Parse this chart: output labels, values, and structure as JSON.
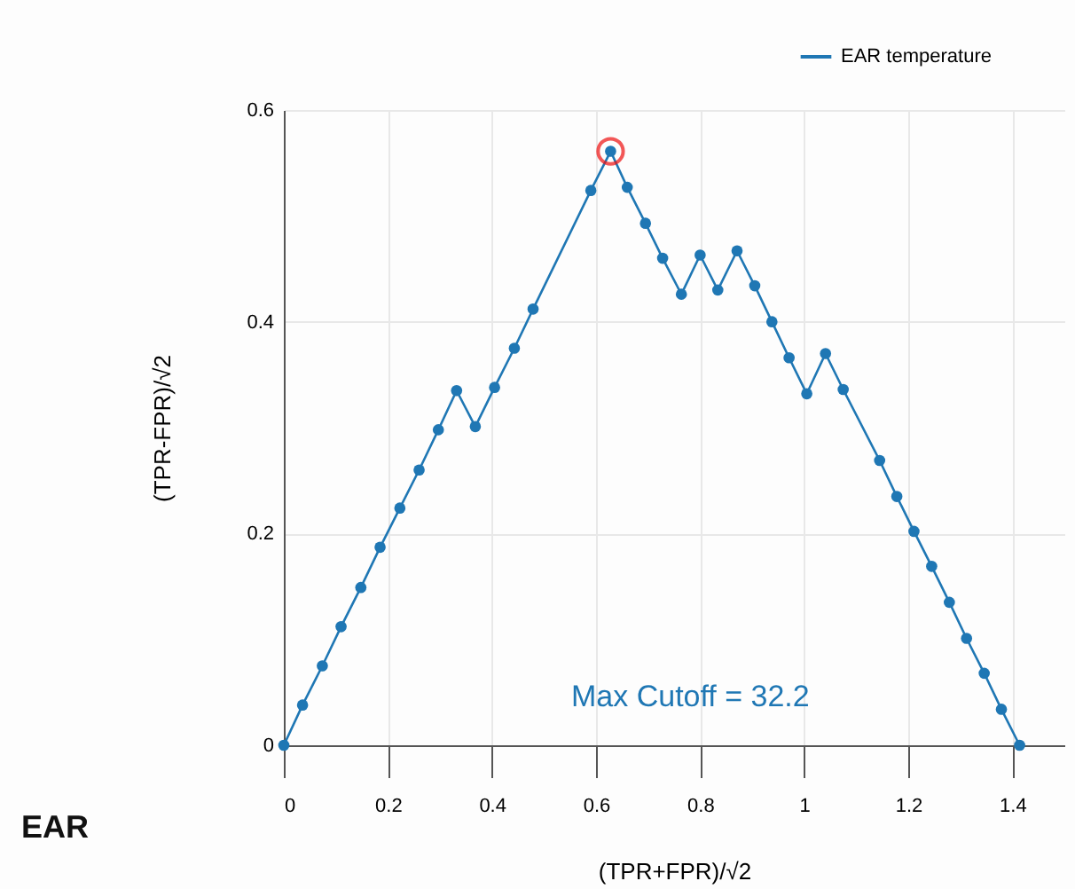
{
  "chart_data": {
    "type": "line",
    "title": "EAR",
    "xlabel": "(TPR+FPR)/√2",
    "ylabel": "(TPR-FPR)/√2",
    "xlim": [
      0,
      1.5
    ],
    "ylim": [
      0,
      0.6
    ],
    "xticks": [
      0,
      0.2,
      0.4,
      0.6,
      0.8,
      1,
      1.2,
      1.4
    ],
    "yticks": [
      0,
      0.2,
      0.4,
      0.6
    ],
    "grid": true,
    "legend": "top right",
    "marker": "circle",
    "line_style": "solid",
    "annotations": [
      "Max Cutoff = 32.2"
    ],
    "series": [
      {
        "name": "EAR temperature",
        "color": "#1f77b4",
        "x": [
          0,
          0.036,
          0.074,
          0.11,
          0.148,
          0.185,
          0.223,
          0.26,
          0.297,
          0.332,
          0.368,
          0.405,
          0.443,
          0.479,
          0.59,
          0.628,
          0.66,
          0.695,
          0.728,
          0.764,
          0.8,
          0.834,
          0.871,
          0.905,
          0.938,
          0.971,
          1.005,
          1.041,
          1.075,
          1.145,
          1.178,
          1.211,
          1.245,
          1.279,
          1.312,
          1.346,
          1.379,
          1.414
        ],
        "values": [
          0,
          0.038,
          0.075,
          0.112,
          0.149,
          0.187,
          0.224,
          0.26,
          0.298,
          0.335,
          0.301,
          0.338,
          0.375,
          0.412,
          0.524,
          0.561,
          0.527,
          0.493,
          0.46,
          0.426,
          0.463,
          0.43,
          0.467,
          0.434,
          0.4,
          0.366,
          0.332,
          0.37,
          0.336,
          0.269,
          0.235,
          0.202,
          0.169,
          0.135,
          0.101,
          0.068,
          0.034,
          0
        ]
      },
      {
        "type": "scatter",
        "color": "#ee1111",
        "x": [
          0.628
        ],
        "values": [
          0.561
        ]
      }
    ]
  }
}
